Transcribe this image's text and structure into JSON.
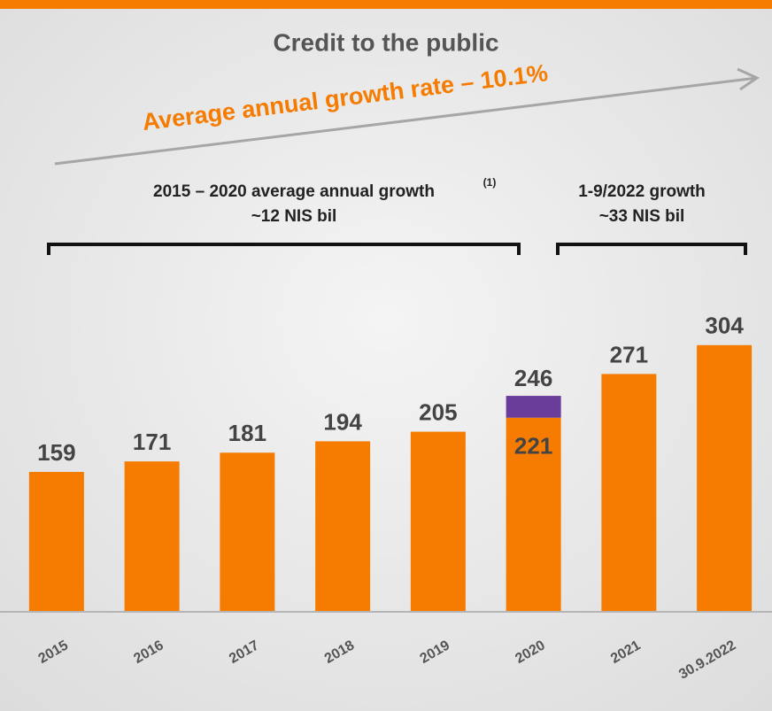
{
  "chart_data": {
    "type": "bar",
    "title": "Credit to the public",
    "subtitle": "Average annual growth rate – 10.1%",
    "annotations": {
      "left_heading": "2015 – 2020 average annual growth",
      "left_note": "(1)",
      "left_value": "~12 NIS bil",
      "right_heading": "1-9/2022 growth",
      "right_value": "~33 NIS bil"
    },
    "categories": [
      "2015",
      "2016",
      "2017",
      "2018",
      "2019",
      "2020",
      "2021",
      "30.9.2022"
    ],
    "series": [
      {
        "color": "#f57c00",
        "values": [
          159,
          171,
          181,
          194,
          205,
          221,
          271,
          304
        ]
      },
      {
        "color": "#6a3d9a",
        "values": [
          null,
          null,
          null,
          null,
          null,
          25,
          null,
          null
        ]
      }
    ],
    "totals": [
      null,
      null,
      null,
      null,
      null,
      246,
      null,
      null
    ],
    "ylim": [
      0,
      320
    ]
  }
}
